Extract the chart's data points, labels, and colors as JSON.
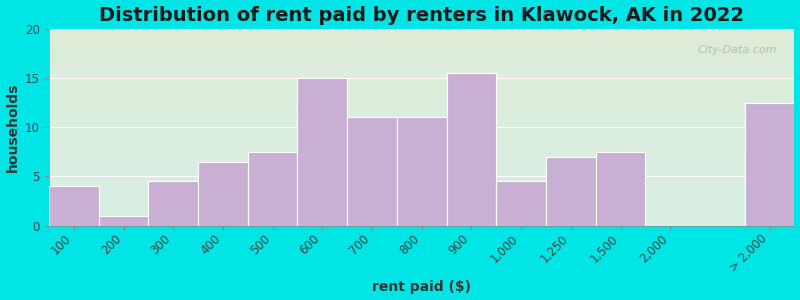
{
  "title": "Distribution of rent paid by renters in Klawock, AK in 2022",
  "xlabel": "rent paid ($)",
  "ylabel": "households",
  "categories": [
    "100",
    "200",
    "300",
    "400",
    "500",
    "600",
    "700",
    "800",
    "900",
    "1,000",
    "1,250",
    "1,500",
    "2,000",
    "> 2,000"
  ],
  "values": [
    4,
    1,
    4.5,
    6.5,
    7.5,
    15,
    11,
    11,
    15.5,
    4.5,
    7,
    7.5,
    0,
    12.5
  ],
  "bar_color": "#c9afd4",
  "bar_edge_color": "#ffffff",
  "ylim": [
    0,
    20
  ],
  "yticks": [
    0,
    5,
    10,
    15,
    20
  ],
  "background_outer": "#00e5e5",
  "background_inner_top": "#deecd8",
  "background_inner_bottom": "#d8eee4",
  "title_fontsize": 14,
  "axis_label_fontsize": 10,
  "tick_fontsize": 8.5,
  "watermark_text": "City-Data.com"
}
